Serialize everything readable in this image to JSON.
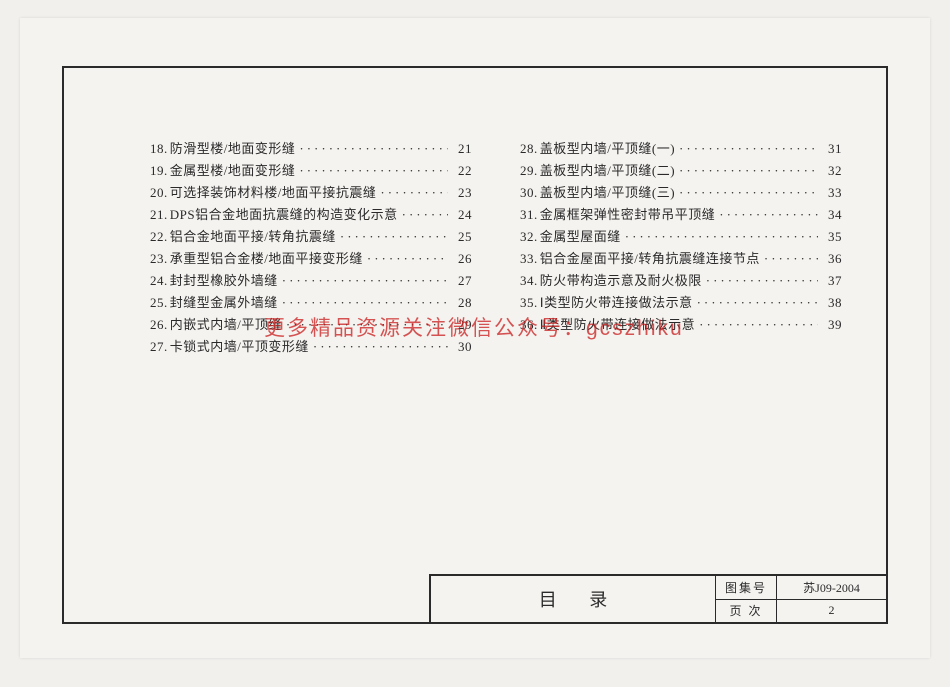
{
  "toc": {
    "left": [
      {
        "n": "18",
        "t": "防滑型楼/地面变形缝",
        "p": "21"
      },
      {
        "n": "19",
        "t": "金属型楼/地面变形缝",
        "p": "22"
      },
      {
        "n": "20",
        "t": "可选择装饰材料楼/地面平接抗震缝",
        "p": "23"
      },
      {
        "n": "21",
        "t": "DPS铝合金地面抗震缝的构造变化示意",
        "p": "24"
      },
      {
        "n": "22",
        "t": "铝合金地面平接/转角抗震缝",
        "p": "25"
      },
      {
        "n": "23",
        "t": "承重型铝合金楼/地面平接变形缝",
        "p": "26"
      },
      {
        "n": "24",
        "t": "封封型橡胶外墙缝",
        "p": "27"
      },
      {
        "n": "25",
        "t": "封缝型金属外墙缝",
        "p": "28"
      },
      {
        "n": "26",
        "t": "内嵌式内墙/平顶缝",
        "p": "29"
      },
      {
        "n": "27",
        "t": "卡锁式内墙/平顶变形缝",
        "p": "30"
      }
    ],
    "right": [
      {
        "n": "28",
        "t": "盖板型内墙/平顶缝(一)",
        "p": "31"
      },
      {
        "n": "29",
        "t": "盖板型内墙/平顶缝(二)",
        "p": "32"
      },
      {
        "n": "30",
        "t": "盖板型内墙/平顶缝(三)",
        "p": "33"
      },
      {
        "n": "31",
        "t": "金属框架弹性密封带吊平顶缝",
        "p": "34"
      },
      {
        "n": "32",
        "t": "金属型屋面缝",
        "p": "35"
      },
      {
        "n": "33",
        "t": "铝合金屋面平接/转角抗震缝连接节点",
        "p": "36"
      },
      {
        "n": "34",
        "t": "防火带构造示意及耐火极限",
        "p": "37"
      },
      {
        "n": "35",
        "t": "Ⅰ类型防火带连接做法示意",
        "p": "38"
      },
      {
        "n": "36",
        "t": "Ⅱ类型防火带连接做法示意",
        "p": "39"
      }
    ]
  },
  "watermark": "更多精品资源关注微信公众号：gcszhiku",
  "titleblock": {
    "title": "目 录",
    "tuji_label": "图集号",
    "tuji_value": "苏J09-2004",
    "page_label": "页 次",
    "page_value": "2"
  }
}
